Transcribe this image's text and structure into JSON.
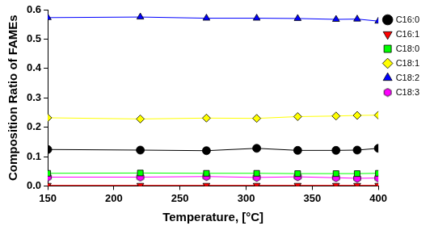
{
  "chart_data": {
    "type": "scatter",
    "x_label": "Temperature, [°C]",
    "y_label": "Composition Ratio of FAMEs",
    "x": [
      150,
      220,
      270,
      308,
      339,
      368,
      384,
      400
    ],
    "series": [
      {
        "name": "C16:0",
        "color": "#000000",
        "marker": "circle",
        "values": [
          0.124,
          0.122,
          0.12,
          0.128,
          0.121,
          0.121,
          0.122,
          0.128
        ]
      },
      {
        "name": "C16:1",
        "color": "#ff0000",
        "marker": "triangle_down",
        "values": [
          0.002,
          0.002,
          0.002,
          0.002,
          0.002,
          0.002,
          0.002,
          0.002
        ]
      },
      {
        "name": "C18:0",
        "color": "#00ff00",
        "marker": "square",
        "values": [
          0.043,
          0.044,
          0.043,
          0.043,
          0.042,
          0.042,
          0.042,
          0.043
        ]
      },
      {
        "name": "C18:1",
        "color": "#ffff00",
        "marker": "diamond",
        "values": [
          0.232,
          0.228,
          0.231,
          0.23,
          0.236,
          0.238,
          0.24,
          0.241
        ]
      },
      {
        "name": "C18:2",
        "color": "#0000ff",
        "marker": "triangle",
        "values": [
          0.573,
          0.575,
          0.571,
          0.571,
          0.57,
          0.567,
          0.568,
          0.561
        ]
      },
      {
        "name": "C18:3",
        "color": "#ff00ff",
        "marker": "hexagon",
        "values": [
          0.03,
          0.03,
          0.032,
          0.029,
          0.031,
          0.028,
          0.026,
          0.027
        ]
      }
    ],
    "xlim": [
      150,
      400
    ],
    "xticks": [
      150,
      200,
      250,
      300,
      350,
      400
    ],
    "ylim": [
      0,
      0.6
    ],
    "yticks": [
      {
        "value": 0,
        "label": "0.0"
      },
      0.1,
      0.2,
      0.3,
      0.4,
      0.5,
      0.6
    ],
    "grid": false,
    "legend": "right",
    "line_style": "solid"
  }
}
